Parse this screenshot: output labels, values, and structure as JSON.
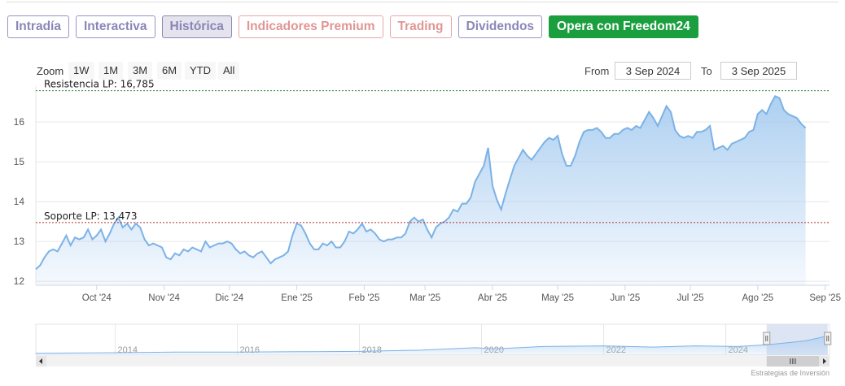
{
  "tabs": [
    {
      "label": "Intradía",
      "style": "normal"
    },
    {
      "label": "Interactiva",
      "style": "normal"
    },
    {
      "label": "Histórica",
      "style": "active"
    },
    {
      "label": "Indicadores Premium",
      "style": "premium"
    },
    {
      "label": "Trading",
      "style": "premium"
    },
    {
      "label": "Dividendos",
      "style": "normal"
    },
    {
      "label": "Opera con Freedom24",
      "style": "cta"
    }
  ],
  "zoom": {
    "label": "Zoom",
    "buttons": [
      "1W",
      "1M",
      "3M",
      "6M",
      "YTD",
      "All"
    ]
  },
  "range": {
    "from_label": "From",
    "from_value": "3 Sep 2024",
    "to_label": "To",
    "to_value": "3 Sep 2025"
  },
  "credit": "Estrategias de Inversión",
  "colors": {
    "line": "#7cb2e6",
    "fill": "#a9cdf0",
    "resistance": "#2f7d32",
    "support": "#b03030",
    "tab_cta": "#1b9e3e"
  },
  "chart_data": {
    "type": "area",
    "ylim": [
      11.9,
      16.9
    ],
    "yticks": [
      12,
      13,
      14,
      15,
      16
    ],
    "x_tick_labels": [
      "Oct '24",
      "Nov '24",
      "Dic '24",
      "Ene '25",
      "Feb '25",
      "Mar '25",
      "Abr '25",
      "May '25",
      "Jun '25",
      "Jul '25",
      "Ago '25",
      "Sep '25"
    ],
    "x_tick_days": [
      28,
      59,
      89,
      120,
      151,
      179,
      210,
      240,
      271,
      301,
      332,
      363
    ],
    "x_range_days": [
      0,
      365
    ],
    "series": [
      {
        "points": [
          [
            0,
            12.3
          ],
          [
            2,
            12.4
          ],
          [
            4,
            12.6
          ],
          [
            6,
            12.75
          ],
          [
            8,
            12.8
          ],
          [
            10,
            12.75
          ],
          [
            12,
            12.95
          ],
          [
            14,
            13.15
          ],
          [
            16,
            12.9
          ],
          [
            18,
            13.1
          ],
          [
            20,
            13.05
          ],
          [
            22,
            13.1
          ],
          [
            24,
            13.3
          ],
          [
            26,
            13.05
          ],
          [
            28,
            13.15
          ],
          [
            30,
            13.3
          ],
          [
            32,
            13.0
          ],
          [
            34,
            13.2
          ],
          [
            36,
            13.45
          ],
          [
            38,
            13.6
          ],
          [
            40,
            13.35
          ],
          [
            42,
            13.45
          ],
          [
            44,
            13.3
          ],
          [
            46,
            13.45
          ],
          [
            48,
            13.35
          ],
          [
            50,
            13.05
          ],
          [
            52,
            12.9
          ],
          [
            54,
            12.95
          ],
          [
            56,
            12.9
          ],
          [
            58,
            12.85
          ],
          [
            60,
            12.6
          ],
          [
            62,
            12.55
          ],
          [
            64,
            12.7
          ],
          [
            66,
            12.65
          ],
          [
            68,
            12.8
          ],
          [
            70,
            12.75
          ],
          [
            72,
            12.85
          ],
          [
            74,
            12.8
          ],
          [
            76,
            12.75
          ],
          [
            78,
            13.0
          ],
          [
            80,
            12.85
          ],
          [
            82,
            12.9
          ],
          [
            84,
            12.95
          ],
          [
            86,
            12.95
          ],
          [
            88,
            13.0
          ],
          [
            90,
            12.95
          ],
          [
            92,
            12.8
          ],
          [
            94,
            12.7
          ],
          [
            96,
            12.75
          ],
          [
            98,
            12.65
          ],
          [
            100,
            12.6
          ],
          [
            102,
            12.7
          ],
          [
            104,
            12.75
          ],
          [
            106,
            12.6
          ],
          [
            108,
            12.45
          ],
          [
            110,
            12.55
          ],
          [
            112,
            12.6
          ],
          [
            114,
            12.65
          ],
          [
            116,
            12.75
          ],
          [
            118,
            13.15
          ],
          [
            120,
            13.45
          ],
          [
            122,
            13.4
          ],
          [
            124,
            13.2
          ],
          [
            126,
            12.95
          ],
          [
            128,
            12.8
          ],
          [
            130,
            12.8
          ],
          [
            132,
            12.95
          ],
          [
            134,
            12.9
          ],
          [
            136,
            13.0
          ],
          [
            138,
            12.85
          ],
          [
            140,
            12.85
          ],
          [
            142,
            13.0
          ],
          [
            144,
            13.25
          ],
          [
            146,
            13.2
          ],
          [
            148,
            13.3
          ],
          [
            150,
            13.45
          ],
          [
            152,
            13.25
          ],
          [
            154,
            13.3
          ],
          [
            156,
            13.2
          ],
          [
            158,
            13.05
          ],
          [
            160,
            13.0
          ],
          [
            162,
            13.05
          ],
          [
            164,
            13.05
          ],
          [
            166,
            13.1
          ],
          [
            168,
            13.1
          ],
          [
            170,
            13.2
          ],
          [
            172,
            13.5
          ],
          [
            174,
            13.6
          ],
          [
            176,
            13.5
          ],
          [
            178,
            13.55
          ],
          [
            180,
            13.3
          ],
          [
            182,
            13.1
          ],
          [
            184,
            13.35
          ],
          [
            186,
            13.45
          ],
          [
            188,
            13.5
          ],
          [
            190,
            13.6
          ],
          [
            192,
            13.8
          ],
          [
            194,
            13.75
          ],
          [
            196,
            13.95
          ],
          [
            198,
            13.95
          ],
          [
            200,
            14.1
          ],
          [
            202,
            14.5
          ],
          [
            204,
            14.7
          ],
          [
            206,
            14.9
          ],
          [
            208,
            15.35
          ],
          [
            210,
            14.4
          ],
          [
            212,
            14.05
          ],
          [
            214,
            13.8
          ],
          [
            216,
            14.2
          ],
          [
            218,
            14.55
          ],
          [
            220,
            14.9
          ],
          [
            222,
            15.1
          ],
          [
            224,
            15.3
          ],
          [
            226,
            15.15
          ],
          [
            228,
            15.05
          ],
          [
            230,
            15.2
          ],
          [
            232,
            15.35
          ],
          [
            234,
            15.5
          ],
          [
            236,
            15.6
          ],
          [
            238,
            15.55
          ],
          [
            240,
            15.65
          ],
          [
            242,
            15.2
          ],
          [
            244,
            14.9
          ],
          [
            246,
            14.9
          ],
          [
            248,
            15.15
          ],
          [
            250,
            15.5
          ],
          [
            252,
            15.75
          ],
          [
            254,
            15.8
          ],
          [
            256,
            15.8
          ],
          [
            258,
            15.85
          ],
          [
            260,
            15.75
          ],
          [
            262,
            15.6
          ],
          [
            264,
            15.6
          ],
          [
            266,
            15.7
          ],
          [
            268,
            15.7
          ],
          [
            270,
            15.8
          ],
          [
            272,
            15.85
          ],
          [
            274,
            15.8
          ],
          [
            276,
            15.9
          ],
          [
            278,
            15.85
          ],
          [
            280,
            16.05
          ],
          [
            282,
            16.25
          ],
          [
            284,
            16.1
          ],
          [
            286,
            15.9
          ],
          [
            288,
            16.15
          ],
          [
            290,
            16.4
          ],
          [
            292,
            16.25
          ],
          [
            294,
            15.8
          ],
          [
            296,
            15.65
          ],
          [
            298,
            15.6
          ],
          [
            300,
            15.65
          ],
          [
            302,
            15.6
          ],
          [
            304,
            15.75
          ],
          [
            306,
            15.75
          ],
          [
            308,
            15.8
          ],
          [
            310,
            15.9
          ],
          [
            312,
            15.3
          ],
          [
            314,
            15.35
          ],
          [
            316,
            15.4
          ],
          [
            318,
            15.3
          ],
          [
            320,
            15.45
          ],
          [
            322,
            15.5
          ],
          [
            324,
            15.55
          ],
          [
            326,
            15.6
          ],
          [
            328,
            15.75
          ],
          [
            330,
            15.8
          ],
          [
            332,
            16.2
          ],
          [
            334,
            16.3
          ],
          [
            336,
            16.2
          ],
          [
            338,
            16.45
          ],
          [
            340,
            16.65
          ],
          [
            342,
            16.6
          ],
          [
            344,
            16.3
          ],
          [
            346,
            16.2
          ],
          [
            348,
            16.15
          ],
          [
            350,
            16.1
          ],
          [
            352,
            15.95
          ],
          [
            354,
            15.85
          ]
        ]
      }
    ],
    "annotations": [
      {
        "label": "Resistencia LP: 16,785",
        "value": 16.785,
        "style": "dotted-green"
      },
      {
        "label": "Soporte LP: 13,473",
        "value": 13.473,
        "style": "dotted-red"
      }
    ],
    "navigator": {
      "labels": [
        "2014",
        "2016",
        "2018",
        "2020",
        "2022",
        "2024"
      ],
      "label_years": [
        2014,
        2016,
        2018,
        2020,
        2022,
        2024
      ],
      "year_range": [
        2012.7,
        2025.7
      ],
      "selected_years": [
        2024.67,
        2025.67
      ],
      "series": [
        [
          2012.7,
          0.06
        ],
        [
          2014,
          0.08
        ],
        [
          2015,
          0.1
        ],
        [
          2016,
          0.1
        ],
        [
          2017,
          0.11
        ],
        [
          2018,
          0.12
        ],
        [
          2019,
          0.16
        ],
        [
          2019.9,
          0.24
        ],
        [
          2020.2,
          0.2
        ],
        [
          2021,
          0.28
        ],
        [
          2022,
          0.3
        ],
        [
          2022.8,
          0.26
        ],
        [
          2023.5,
          0.3
        ],
        [
          2024.2,
          0.28
        ],
        [
          2024.7,
          0.34
        ],
        [
          2025.3,
          0.46
        ],
        [
          2025.67,
          0.62
        ]
      ]
    },
    "grid": true,
    "legend": "none"
  }
}
